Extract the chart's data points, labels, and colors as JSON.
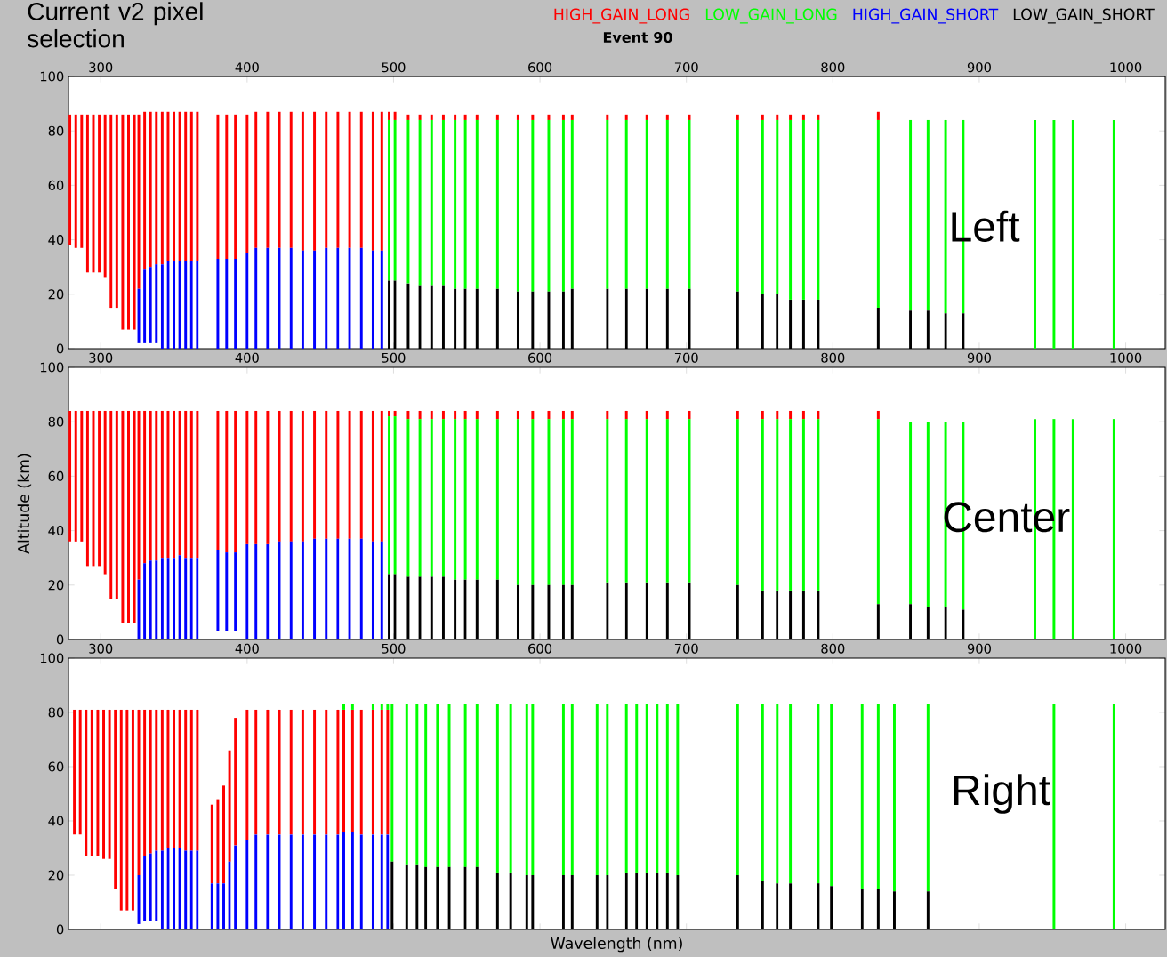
{
  "chart_data": [
    {
      "type": "bar",
      "title": "Current v2 pixel selection",
      "subtitle": "Event 90",
      "legend": "top",
      "annotations": [
        "Left"
      ],
      "xlim": [
        278,
        1027
      ],
      "xticks": [
        300,
        400,
        500,
        600,
        700,
        800,
        900,
        1000
      ],
      "x2lim": [
        278,
        1027
      ],
      "x2ticks": [
        300,
        400,
        500,
        600,
        700,
        800,
        900,
        1000
      ],
      "ylim": [
        0,
        100
      ],
      "yticks": [
        0,
        20,
        40,
        60,
        80,
        100
      ],
      "series": [
        {
          "name": "HIGH_GAIN_LONG",
          "color": "#ff0000",
          "x": [
            279,
            283,
            287,
            291,
            295,
            299,
            303,
            307,
            311,
            315,
            319,
            323,
            326,
            330,
            334,
            338,
            342,
            346,
            350,
            354,
            358,
            362,
            366,
            380,
            386,
            392,
            400,
            406,
            414,
            422,
            430,
            438,
            446,
            454,
            462,
            470,
            478,
            486,
            492,
            497,
            501,
            510,
            518,
            526,
            534,
            542,
            549,
            557,
            571,
            585,
            595,
            606,
            616,
            622,
            646,
            659,
            673,
            687,
            702,
            735,
            752,
            762,
            771,
            780,
            790,
            831
          ],
          "base": [
            38,
            37,
            37,
            28,
            28,
            28,
            26,
            15,
            15,
            7,
            7,
            7,
            22,
            29,
            30,
            31,
            31,
            32,
            32,
            32,
            32,
            32,
            32,
            33,
            33,
            33,
            35,
            37,
            37,
            37,
            37,
            36,
            36,
            37,
            37,
            37,
            37,
            36,
            36,
            84,
            84,
            84,
            84,
            84,
            84,
            84,
            84,
            84,
            84,
            84,
            84,
            84,
            84,
            84,
            84,
            84,
            84,
            84,
            84,
            84,
            84,
            84,
            84,
            84,
            84,
            84
          ],
          "values": [
            48,
            49,
            49,
            58,
            58,
            58,
            60,
            71,
            71,
            79,
            79,
            79,
            64,
            58,
            57,
            56,
            56,
            55,
            55,
            55,
            55,
            55,
            55,
            53,
            53,
            53,
            51,
            50,
            50,
            50,
            50,
            51,
            51,
            50,
            50,
            50,
            50,
            51,
            51,
            3,
            3,
            2,
            2,
            2,
            2,
            2,
            2,
            2,
            2,
            2,
            2,
            2,
            2,
            2,
            2,
            2,
            2,
            2,
            2,
            2,
            2,
            2,
            2,
            2,
            2,
            3
          ]
        },
        {
          "name": "LOW_GAIN_LONG",
          "color": "#00ff00",
          "x": [
            497,
            501,
            510,
            518,
            526,
            534,
            542,
            549,
            557,
            571,
            585,
            595,
            606,
            616,
            622,
            646,
            659,
            673,
            687,
            702,
            735,
            752,
            762,
            771,
            780,
            790,
            831,
            853,
            865,
            877,
            889,
            938,
            951,
            964,
            992
          ],
          "base": [
            25,
            25,
            24,
            23,
            23,
            23,
            22,
            22,
            22,
            22,
            21,
            21,
            21,
            21,
            22,
            22,
            22,
            22,
            22,
            22,
            21,
            20,
            20,
            18,
            18,
            18,
            15,
            14,
            14,
            13,
            13,
            0,
            0,
            0,
            0
          ],
          "values": [
            59,
            59,
            60,
            61,
            61,
            61,
            62,
            62,
            62,
            62,
            63,
            63,
            63,
            63,
            62,
            62,
            62,
            62,
            62,
            62,
            63,
            64,
            64,
            66,
            66,
            66,
            69,
            70,
            70,
            71,
            71,
            84,
            84,
            84,
            84
          ]
        },
        {
          "name": "HIGH_GAIN_SHORT",
          "color": "#0000ff",
          "x": [
            326,
            330,
            334,
            338,
            342,
            346,
            350,
            354,
            358,
            362,
            366,
            380,
            386,
            392,
            400,
            406,
            414,
            422,
            430,
            438,
            446,
            454,
            462,
            470,
            478,
            486,
            492
          ],
          "base": [
            2,
            2,
            2,
            2,
            0,
            0,
            0,
            0,
            0,
            0,
            0,
            0,
            0,
            0,
            0,
            0,
            0,
            0,
            0,
            0,
            0,
            0,
            0,
            0,
            0,
            0,
            0
          ],
          "values": [
            20,
            27,
            28,
            29,
            31,
            32,
            32,
            32,
            32,
            32,
            32,
            33,
            33,
            33,
            35,
            37,
            37,
            37,
            37,
            36,
            36,
            37,
            37,
            37,
            37,
            36,
            36
          ]
        },
        {
          "name": "LOW_GAIN_SHORT",
          "color": "#000000",
          "x": [
            497,
            501,
            510,
            518,
            526,
            534,
            542,
            549,
            557,
            571,
            585,
            595,
            606,
            616,
            622,
            646,
            659,
            673,
            687,
            702,
            735,
            752,
            762,
            771,
            780,
            790,
            831,
            853,
            865,
            877,
            889
          ],
          "values": [
            25,
            25,
            24,
            23,
            23,
            23,
            22,
            22,
            22,
            22,
            21,
            21,
            21,
            21,
            22,
            22,
            22,
            22,
            22,
            22,
            21,
            20,
            20,
            18,
            18,
            18,
            15,
            14,
            14,
            13,
            13
          ]
        }
      ]
    },
    {
      "type": "bar",
      "ylabel": "Altitude (km)",
      "annotations": [
        "Center"
      ],
      "xlim": [
        278,
        1027
      ],
      "xticks": [
        300,
        400,
        500,
        600,
        700,
        800,
        900,
        1000
      ],
      "ylim": [
        0,
        100
      ],
      "yticks": [
        0,
        20,
        40,
        60,
        80,
        100
      ],
      "series": [
        {
          "color": "#ff0000",
          "x": [
            279,
            283,
            287,
            291,
            295,
            299,
            303,
            307,
            311,
            315,
            319,
            323,
            326,
            330,
            334,
            338,
            342,
            346,
            350,
            354,
            358,
            362,
            366,
            380,
            386,
            392,
            400,
            406,
            414,
            422,
            430,
            438,
            446,
            454,
            462,
            470,
            478,
            486,
            492,
            497,
            501,
            510,
            518,
            526,
            534,
            542,
            549,
            557,
            571,
            585,
            595,
            606,
            616,
            622,
            646,
            659,
            673,
            687,
            702,
            735,
            752,
            762,
            771,
            780,
            790,
            831
          ],
          "base": [
            36,
            36,
            36,
            27,
            27,
            27,
            24,
            15,
            15,
            6,
            6,
            6,
            22,
            28,
            29,
            29,
            30,
            30,
            30,
            31,
            30,
            30,
            30,
            33,
            32,
            32,
            35,
            35,
            35,
            36,
            36,
            36,
            37,
            37,
            37,
            37,
            37,
            36,
            36,
            82,
            82,
            81,
            81,
            81,
            81,
            81,
            81,
            81,
            81,
            81,
            81,
            81,
            81,
            81,
            81,
            81,
            81,
            81,
            81,
            81,
            81,
            81,
            81,
            81,
            81,
            81
          ],
          "values": [
            48,
            48,
            48,
            57,
            57,
            57,
            60,
            69,
            69,
            78,
            78,
            78,
            62,
            56,
            55,
            55,
            54,
            54,
            54,
            53,
            54,
            54,
            54,
            51,
            52,
            52,
            49,
            49,
            49,
            48,
            48,
            48,
            47,
            47,
            47,
            47,
            47,
            48,
            48,
            2,
            2,
            3,
            3,
            3,
            3,
            3,
            3,
            3,
            3,
            3,
            3,
            3,
            3,
            3,
            3,
            3,
            3,
            3,
            3,
            3,
            3,
            3,
            3,
            3,
            3,
            3
          ]
        },
        {
          "color": "#00ff00",
          "x": [
            497,
            501,
            510,
            518,
            526,
            534,
            542,
            549,
            557,
            571,
            585,
            595,
            606,
            616,
            622,
            646,
            659,
            673,
            687,
            702,
            735,
            752,
            762,
            771,
            780,
            790,
            831,
            853,
            865,
            877,
            889,
            938,
            951,
            964,
            992
          ],
          "base": [
            24,
            24,
            23,
            23,
            23,
            23,
            22,
            22,
            22,
            22,
            20,
            20,
            20,
            20,
            20,
            21,
            21,
            21,
            21,
            21,
            20,
            18,
            18,
            18,
            18,
            18,
            13,
            13,
            12,
            12,
            11,
            0,
            0,
            0,
            0
          ],
          "values": [
            58,
            58,
            58,
            58,
            58,
            58,
            59,
            59,
            59,
            59,
            61,
            61,
            61,
            61,
            61,
            60,
            60,
            60,
            60,
            60,
            61,
            63,
            63,
            63,
            63,
            63,
            68,
            67,
            68,
            68,
            69,
            81,
            81,
            81,
            81
          ]
        },
        {
          "color": "#0000ff",
          "x": [
            326,
            330,
            334,
            338,
            342,
            346,
            350,
            354,
            358,
            362,
            366,
            380,
            386,
            392,
            400,
            406,
            414,
            422,
            430,
            438,
            446,
            454,
            462,
            470,
            478,
            486,
            492
          ],
          "base": [
            0,
            0,
            0,
            0,
            0,
            0,
            0,
            0,
            0,
            0,
            0,
            3,
            3,
            3,
            0,
            0,
            0,
            0,
            0,
            0,
            0,
            0,
            0,
            0,
            0,
            0,
            0
          ],
          "values": [
            22,
            28,
            29,
            29,
            30,
            30,
            30,
            31,
            30,
            30,
            30,
            30,
            29,
            29,
            35,
            35,
            35,
            36,
            36,
            36,
            37,
            37,
            37,
            37,
            37,
            36,
            36
          ]
        },
        {
          "color": "#000000",
          "x": [
            497,
            501,
            510,
            518,
            526,
            534,
            542,
            549,
            557,
            571,
            585,
            595,
            606,
            616,
            622,
            646,
            659,
            673,
            687,
            702,
            735,
            752,
            762,
            771,
            780,
            790,
            831,
            853,
            865,
            877,
            889
          ],
          "values": [
            24,
            24,
            23,
            23,
            23,
            23,
            22,
            22,
            22,
            22,
            20,
            20,
            20,
            20,
            20,
            21,
            21,
            21,
            21,
            21,
            20,
            18,
            18,
            18,
            18,
            18,
            13,
            13,
            12,
            12,
            11
          ]
        }
      ]
    },
    {
      "type": "bar",
      "xlabel": "Wavelength (nm)",
      "annotations": [
        "Right"
      ],
      "tick_labels": "y",
      "xlim": [
        278,
        1027
      ],
      "xticks": [
        300,
        400,
        500,
        600,
        700,
        800,
        900,
        1000
      ],
      "ylim": [
        0,
        100
      ],
      "yticks": [
        0,
        20,
        40,
        60,
        80,
        100
      ],
      "series": [
        {
          "color": "#ff0000",
          "x": [
            282,
            286,
            290,
            294,
            298,
            302,
            306,
            310,
            314,
            318,
            322,
            326,
            330,
            334,
            338,
            342,
            346,
            350,
            354,
            358,
            362,
            366,
            376,
            380,
            384,
            388,
            392,
            400,
            406,
            414,
            422,
            430,
            438,
            446,
            454,
            462,
            466,
            472,
            478,
            486,
            492,
            496
          ],
          "base": [
            35,
            35,
            27,
            27,
            27,
            26,
            26,
            15,
            7,
            7,
            7,
            20,
            27,
            28,
            29,
            29,
            30,
            30,
            30,
            29,
            29,
            29,
            17,
            17,
            17,
            25,
            31,
            33,
            35,
            35,
            35,
            35,
            35,
            35,
            35,
            35,
            36,
            36,
            35,
            35,
            35,
            35
          ],
          "values": [
            46,
            46,
            54,
            54,
            54,
            55,
            55,
            66,
            74,
            74,
            74,
            61,
            54,
            53,
            52,
            52,
            51,
            51,
            51,
            52,
            52,
            52,
            29,
            31,
            36,
            41,
            47,
            48,
            46,
            46,
            46,
            46,
            46,
            46,
            46,
            46,
            45,
            45,
            46,
            46,
            46,
            46
          ]
        },
        {
          "color": "#00ff00",
          "x": [
            466,
            472,
            486,
            492,
            496,
            499,
            509,
            516,
            522,
            530,
            538,
            549,
            557,
            571,
            580,
            591,
            595,
            616,
            622,
            639,
            646,
            659,
            666,
            673,
            680,
            687,
            694,
            735,
            752,
            762,
            771,
            790,
            799,
            820,
            831,
            842,
            865,
            951,
            992
          ],
          "base": [
            81,
            81,
            81,
            81,
            81,
            25,
            24,
            24,
            23,
            23,
            23,
            23,
            23,
            21,
            21,
            20,
            20,
            20,
            20,
            20,
            20,
            21,
            21,
            21,
            21,
            21,
            20,
            20,
            18,
            17,
            17,
            17,
            16,
            15,
            15,
            14,
            14,
            0,
            0
          ],
          "values": [
            2,
            2,
            2,
            2,
            2,
            58,
            59,
            59,
            60,
            60,
            60,
            60,
            60,
            62,
            62,
            63,
            63,
            63,
            63,
            63,
            63,
            62,
            62,
            62,
            62,
            62,
            63,
            63,
            65,
            66,
            66,
            66,
            67,
            68,
            68,
            69,
            69,
            83,
            83
          ]
        },
        {
          "color": "#0000ff",
          "x": [
            326,
            330,
            334,
            338,
            342,
            346,
            350,
            354,
            358,
            362,
            366,
            376,
            380,
            384,
            388,
            392,
            400,
            406,
            414,
            422,
            430,
            438,
            446,
            454,
            462,
            466,
            472,
            478,
            486,
            492,
            496
          ],
          "base": [
            2,
            3,
            3,
            3,
            0,
            0,
            0,
            0,
            0,
            0,
            0,
            0,
            0,
            0,
            0,
            0,
            0,
            0,
            0,
            0,
            0,
            0,
            0,
            0,
            0,
            0,
            0,
            0,
            0,
            0,
            0
          ],
          "values": [
            18,
            24,
            25,
            26,
            29,
            30,
            30,
            30,
            29,
            29,
            29,
            17,
            17,
            17,
            25,
            31,
            33,
            35,
            35,
            35,
            35,
            35,
            35,
            35,
            35,
            36,
            36,
            35,
            35,
            35,
            35
          ]
        },
        {
          "color": "#000000",
          "x": [
            499,
            509,
            516,
            522,
            530,
            538,
            549,
            557,
            571,
            580,
            591,
            595,
            616,
            622,
            639,
            646,
            659,
            666,
            673,
            680,
            687,
            694,
            735,
            752,
            762,
            771,
            790,
            799,
            820,
            831,
            842,
            865
          ],
          "values": [
            25,
            24,
            24,
            23,
            23,
            23,
            23,
            23,
            21,
            21,
            20,
            20,
            20,
            20,
            20,
            20,
            21,
            21,
            21,
            21,
            21,
            20,
            20,
            18,
            17,
            17,
            17,
            16,
            15,
            15,
            14,
            14
          ]
        }
      ]
    }
  ]
}
